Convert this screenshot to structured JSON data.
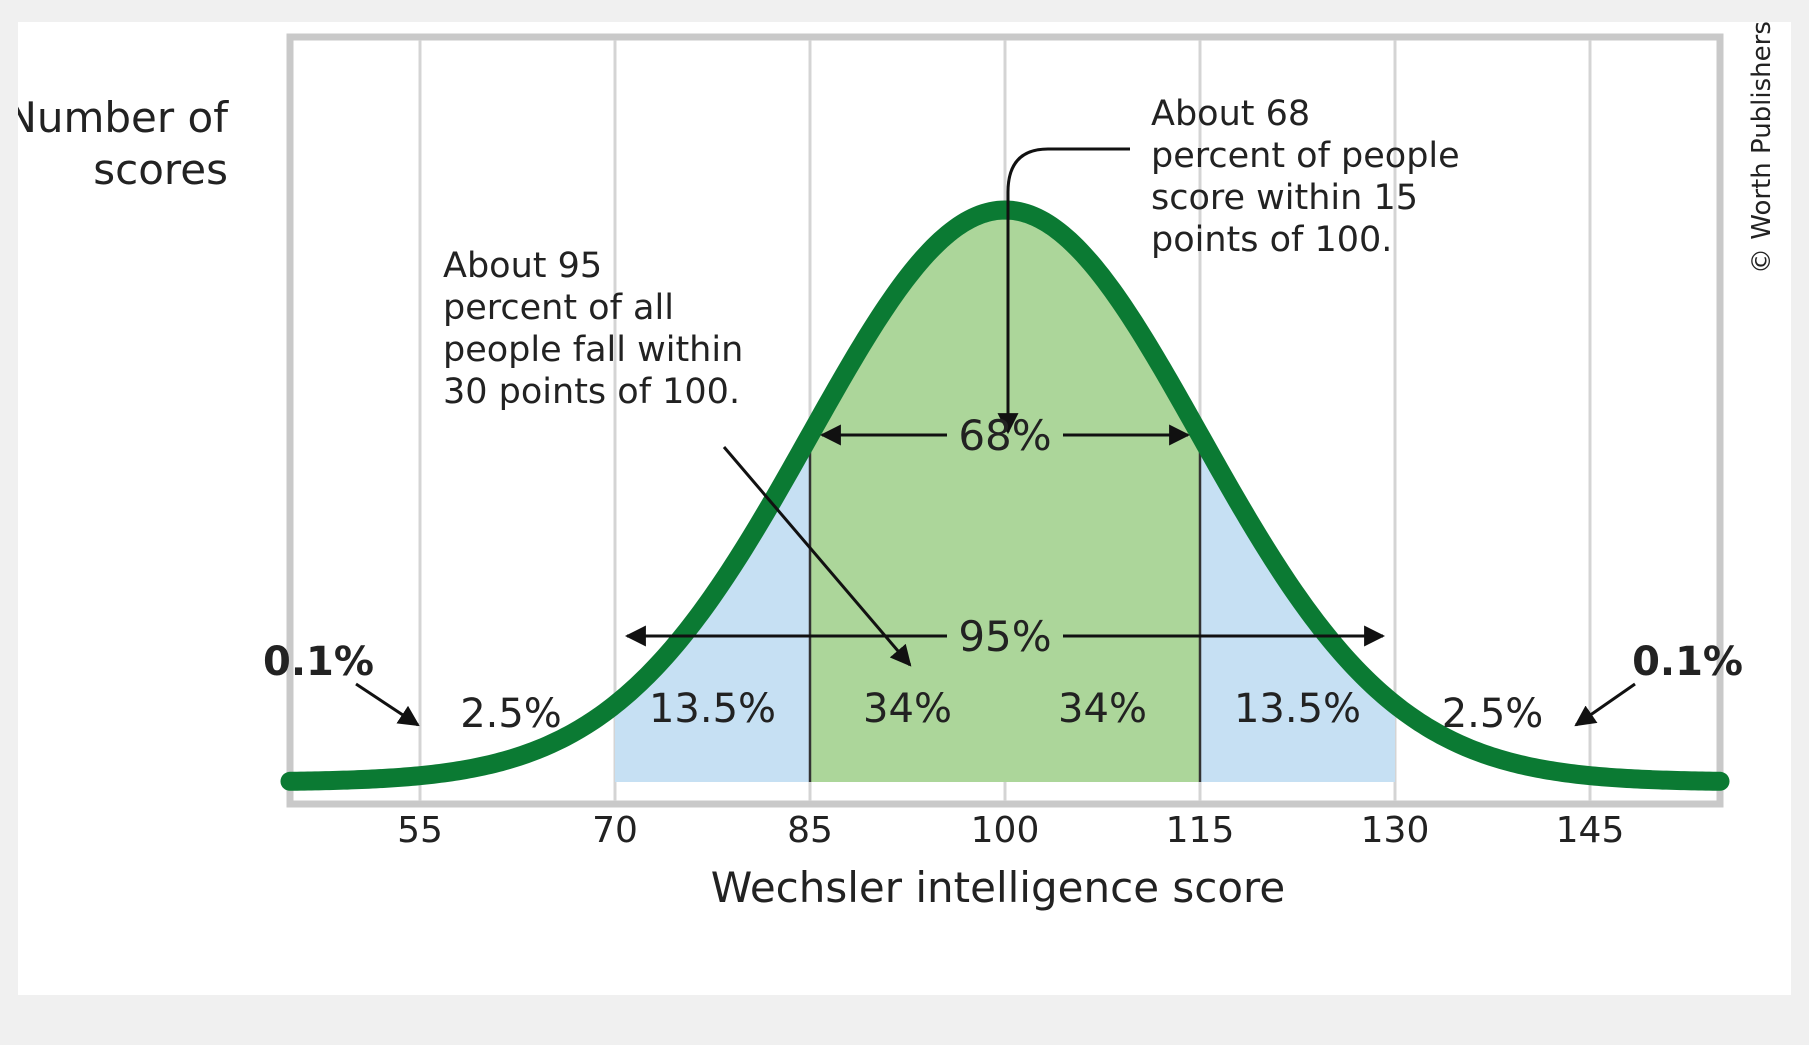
{
  "credit": "© Worth Publishers",
  "chart_data": {
    "type": "area",
    "title": "",
    "xlabel": "Wechsler intelligence score",
    "ylabel_lines": [
      "Number of",
      "scores"
    ],
    "distribution": {
      "mean": 100,
      "sd": 15
    },
    "xlim": [
      45,
      155
    ],
    "x_ticks": [
      55,
      70,
      85,
      100,
      115,
      130,
      145
    ],
    "colors": {
      "curve": "#0b7a33",
      "inner_fill": "#acd69a",
      "outer_fill": "#c6e0f3",
      "grid": "#d4d4d4",
      "frame": "#c9c9c9"
    },
    "regions": [
      {
        "from": 70,
        "to": 85,
        "fill": "outer"
      },
      {
        "from": 85,
        "to": 115,
        "fill": "inner"
      },
      {
        "from": 115,
        "to": 130,
        "fill": "outer"
      }
    ],
    "region_labels": [
      {
        "x": 62,
        "label": "2.5%"
      },
      {
        "x": 77.5,
        "label": "13.5%"
      },
      {
        "x": 92.5,
        "label": "34%"
      },
      {
        "x": 107.5,
        "label": "34%"
      },
      {
        "x": 122.5,
        "label": "13.5%"
      },
      {
        "x": 137.5,
        "label": "2.5%"
      }
    ],
    "tail_labels": [
      {
        "x": 48,
        "label": "0.1%"
      },
      {
        "x": 152,
        "label": "0.1%"
      }
    ],
    "ranges": [
      {
        "from": 85,
        "to": 115,
        "label": "68%"
      },
      {
        "from": 70,
        "to": 130,
        "label": "95%"
      }
    ],
    "annotations": [
      {
        "lines": [
          "About 95",
          "percent of all",
          "people fall within",
          "30 points of 100."
        ]
      },
      {
        "lines": [
          "About 68",
          "percent of people",
          "score within 15",
          "points of 100."
        ]
      }
    ]
  }
}
